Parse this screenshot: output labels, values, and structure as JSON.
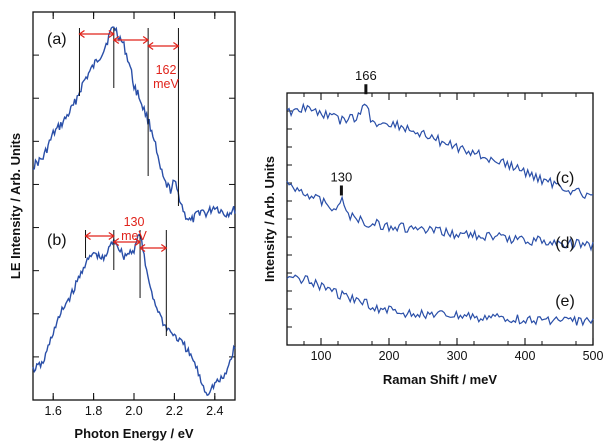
{
  "chart_data": [
    {
      "type": "line",
      "xlabel": "Photon Energy / eV",
      "ylabel": "LE Intensity / Arb. Units",
      "xlim": [
        1.5,
        2.5
      ],
      "xticks": [
        "1.6",
        "1.8",
        "2.0",
        "2.2",
        "2.4"
      ],
      "line_color": "#2a4fa8",
      "annotation_color": "#e0231b",
      "panels": [
        {
          "label": "(a)",
          "series": [
            {
              "x": [
                1.5,
                1.55,
                1.6,
                1.65,
                1.7,
                1.75,
                1.8,
                1.85,
                1.88,
                1.9,
                1.92,
                1.95,
                1.98,
                2.0,
                2.02,
                2.05,
                2.08,
                2.1,
                2.12,
                2.15,
                2.18,
                2.2,
                2.22,
                2.25,
                2.28,
                2.3,
                2.33,
                2.36,
                2.4,
                2.45,
                2.5
              ],
              "y": [
                0.72,
                0.68,
                0.56,
                0.5,
                0.42,
                0.3,
                0.22,
                0.14,
                0.06,
                0.02,
                0.06,
                0.12,
                0.22,
                0.32,
                0.36,
                0.44,
                0.52,
                0.58,
                0.7,
                0.8,
                0.84,
                0.8,
                0.86,
                0.96,
                1.0,
                0.98,
                0.94,
                0.96,
                0.92,
                0.96,
                0.94
              ]
            }
          ],
          "bracket_lines_x": [
            1.73,
            1.9,
            2.07,
            2.22
          ],
          "spacing_label": [
            "162",
            "meV"
          ]
        },
        {
          "label": "(b)",
          "series": [
            {
              "x": [
                1.5,
                1.55,
                1.6,
                1.65,
                1.7,
                1.75,
                1.8,
                1.85,
                1.9,
                1.95,
                2.0,
                2.03,
                2.06,
                2.1,
                2.15,
                2.2,
                2.25,
                2.3,
                2.33,
                2.36,
                2.4,
                2.45,
                2.5
              ],
              "y": [
                0.86,
                0.82,
                0.64,
                0.5,
                0.4,
                0.26,
                0.18,
                0.22,
                0.1,
                0.2,
                0.16,
                0.06,
                0.28,
                0.46,
                0.6,
                0.66,
                0.72,
                0.82,
                0.92,
                1.0,
                0.94,
                0.9,
                0.72
              ]
            }
          ],
          "bracket_lines_x": [
            1.76,
            1.9,
            2.03,
            2.16
          ],
          "spacing_label": [
            "130",
            "meV"
          ]
        }
      ]
    },
    {
      "type": "line",
      "xlabel": "Raman Shift / meV",
      "ylabel": "Intensity / Arb. Units",
      "xlim": [
        50,
        500
      ],
      "xticks": [
        "100",
        "200",
        "300",
        "400",
        "500"
      ],
      "line_color": "#2a4fa8",
      "series": [
        {
          "label": "(c)",
          "x": [
            50,
            70,
            90,
            110,
            130,
            150,
            160,
            166,
            172,
            185,
            200,
            230,
            260,
            300,
            340,
            380,
            420,
            460,
            500
          ],
          "y": [
            0.04,
            0.0,
            0.02,
            0.06,
            0.1,
            0.08,
            0.04,
            -0.08,
            0.1,
            0.14,
            0.12,
            0.18,
            0.24,
            0.32,
            0.4,
            0.48,
            0.58,
            0.66,
            0.74
          ],
          "peak": {
            "x": 166,
            "label": "166"
          }
        },
        {
          "label": "(d)",
          "x": [
            50,
            70,
            90,
            110,
            125,
            130,
            135,
            145,
            160,
            180,
            200,
            230,
            260,
            300,
            340,
            380,
            420,
            460,
            500
          ],
          "y": [
            0.22,
            0.26,
            0.32,
            0.38,
            0.42,
            0.34,
            0.42,
            0.48,
            0.52,
            0.54,
            0.56,
            0.58,
            0.6,
            0.62,
            0.64,
            0.66,
            0.68,
            0.7,
            0.72
          ],
          "peak": {
            "x": 130,
            "label": "130"
          }
        },
        {
          "label": "(e)",
          "x": [
            50,
            70,
            90,
            110,
            130,
            150,
            170,
            190,
            210,
            240,
            270,
            300,
            340,
            380,
            420,
            460,
            500
          ],
          "y": [
            0.44,
            0.48,
            0.52,
            0.56,
            0.62,
            0.66,
            0.7,
            0.74,
            0.76,
            0.78,
            0.79,
            0.8,
            0.81,
            0.82,
            0.83,
            0.84,
            0.85
          ]
        }
      ]
    }
  ]
}
